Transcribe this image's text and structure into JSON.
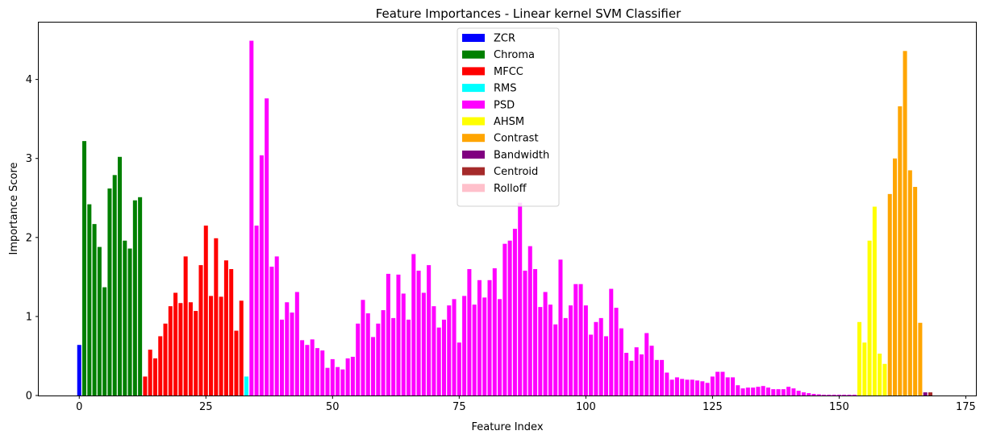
{
  "chart_data": {
    "type": "bar",
    "title": "Feature Importances - Linear kernel SVM Classifier",
    "xlabel": "Feature Index",
    "ylabel": "Importance Score",
    "xlim": [
      -8,
      177
    ],
    "ylim": [
      0,
      4.72
    ],
    "xticks": [
      0,
      25,
      50,
      75,
      100,
      125,
      150,
      175
    ],
    "yticks": [
      0,
      1,
      2,
      3,
      4
    ],
    "grid": false,
    "legend_position": "top-center",
    "series": [
      {
        "name": "ZCR",
        "color": "#0000ff",
        "start": 0,
        "values": [
          0.64
        ]
      },
      {
        "name": "Chroma",
        "color": "#008000",
        "start": 1,
        "values": [
          3.22,
          2.42,
          2.17,
          1.88,
          1.37,
          2.62,
          2.79,
          3.02,
          1.96,
          1.86,
          2.47,
          2.51
        ]
      },
      {
        "name": "MFCC",
        "color": "#ff0000",
        "start": 13,
        "values": [
          0.24,
          0.58,
          0.47,
          0.75,
          0.91,
          1.13,
          1.3,
          1.17,
          1.76,
          1.18,
          1.07,
          1.65,
          2.15,
          1.26,
          1.99,
          1.25,
          1.71,
          1.6,
          0.82,
          1.2
        ]
      },
      {
        "name": "RMS",
        "color": "#00ffff",
        "start": 33,
        "values": [
          0.24
        ]
      },
      {
        "name": "PSD",
        "color": "#ff00ff",
        "start": 34,
        "values": [
          4.49,
          2.15,
          3.04,
          3.76,
          1.63,
          1.76,
          0.96,
          1.18,
          1.05,
          1.31,
          0.7,
          0.64,
          0.71,
          0.6,
          0.57,
          0.35,
          0.46,
          0.36,
          0.33,
          0.47,
          0.49,
          0.91,
          1.21,
          1.04,
          0.74,
          0.91,
          1.08,
          1.54,
          0.98,
          1.53,
          1.29,
          0.96,
          1.79,
          1.58,
          1.3,
          1.65,
          1.13,
          0.86,
          0.96,
          1.14,
          1.22,
          0.67,
          1.26,
          1.6,
          1.15,
          1.46,
          1.24,
          1.46,
          1.61,
          1.22,
          1.92,
          1.96,
          2.11,
          2.44,
          1.58,
          1.89,
          1.6,
          1.12,
          1.31,
          1.15,
          0.9,
          1.72,
          0.98,
          1.14,
          1.41,
          1.41,
          1.14,
          0.77,
          0.93,
          0.98,
          0.75,
          1.35,
          1.11,
          0.85,
          0.54,
          0.44,
          0.61,
          0.52,
          0.79,
          0.63,
          0.45,
          0.45,
          0.29,
          0.2,
          0.23,
          0.21,
          0.2,
          0.2,
          0.19,
          0.18,
          0.16,
          0.24,
          0.3,
          0.3,
          0.23,
          0.23,
          0.13,
          0.09,
          0.1,
          0.1,
          0.11,
          0.12,
          0.1,
          0.08,
          0.08,
          0.08,
          0.11,
          0.09,
          0.06,
          0.04,
          0.03,
          0.02,
          0.015,
          0.01,
          0.01,
          0.01,
          0.01,
          0.01,
          0.01,
          0.01
        ]
      },
      {
        "name": "AHSM",
        "color": "#ffff00",
        "start": 154,
        "values": [
          0.93,
          0.67,
          1.96,
          2.39,
          0.53,
          0.4
        ]
      },
      {
        "name": "Contrast",
        "color": "#ffa500",
        "start": 160,
        "values": [
          2.55,
          3.0,
          3.66,
          4.36,
          2.85,
          2.64,
          0.92
        ]
      },
      {
        "name": "Bandwidth",
        "color": "#800080",
        "start": 167,
        "values": [
          0.04
        ]
      },
      {
        "name": "Centroid",
        "color": "#a52a2a",
        "start": 168,
        "values": [
          0.04
        ]
      },
      {
        "name": "Rolloff",
        "color": "#ffc0cb",
        "start": 169,
        "values": [
          0.0
        ]
      }
    ]
  }
}
